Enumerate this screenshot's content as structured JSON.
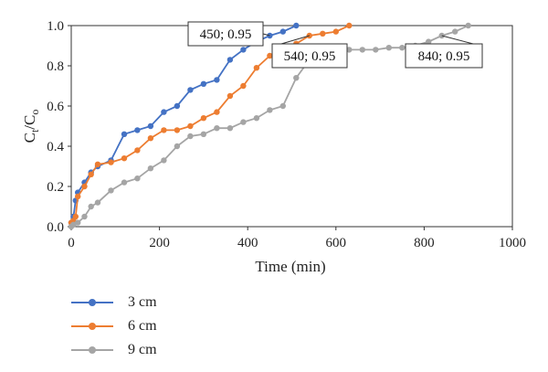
{
  "chart_data": {
    "type": "line",
    "xlabel": "Time (min)",
    "ylabel_main": "C",
    "ylabel_sub1": "t",
    "ylabel_mid": "/C",
    "ylabel_sub2": "o",
    "xlim": [
      0,
      1000
    ],
    "ylim": [
      0,
      1.0
    ],
    "x_ticks": [
      "0",
      "200",
      "400",
      "600",
      "800",
      "1000"
    ],
    "y_ticks": [
      "0.0",
      "0.2",
      "0.4",
      "0.6",
      "0.8",
      "1.0"
    ],
    "grid": false,
    "legend_position": "bottom-left",
    "series": [
      {
        "name": "3 cm",
        "color": "#4472C4",
        "points": [
          [
            0,
            0.02
          ],
          [
            5,
            0.05
          ],
          [
            10,
            0.13
          ],
          [
            15,
            0.17
          ],
          [
            30,
            0.22
          ],
          [
            45,
            0.27
          ],
          [
            60,
            0.3
          ],
          [
            90,
            0.33
          ],
          [
            120,
            0.46
          ],
          [
            150,
            0.48
          ],
          [
            180,
            0.5
          ],
          [
            210,
            0.57
          ],
          [
            240,
            0.6
          ],
          [
            270,
            0.68
          ],
          [
            300,
            0.71
          ],
          [
            330,
            0.73
          ],
          [
            360,
            0.83
          ],
          [
            390,
            0.88
          ],
          [
            420,
            0.92
          ],
          [
            450,
            0.95
          ],
          [
            480,
            0.97
          ],
          [
            510,
            1.0
          ]
        ]
      },
      {
        "name": "6 cm",
        "color": "#ED7D31",
        "points": [
          [
            0,
            0.02
          ],
          [
            5,
            0.03
          ],
          [
            10,
            0.05
          ],
          [
            15,
            0.15
          ],
          [
            30,
            0.2
          ],
          [
            45,
            0.26
          ],
          [
            60,
            0.31
          ],
          [
            90,
            0.32
          ],
          [
            120,
            0.34
          ],
          [
            150,
            0.38
          ],
          [
            180,
            0.44
          ],
          [
            210,
            0.48
          ],
          [
            240,
            0.48
          ],
          [
            270,
            0.5
          ],
          [
            300,
            0.54
          ],
          [
            330,
            0.57
          ],
          [
            360,
            0.65
          ],
          [
            390,
            0.7
          ],
          [
            420,
            0.79
          ],
          [
            450,
            0.85
          ],
          [
            480,
            0.87
          ],
          [
            510,
            0.91
          ],
          [
            540,
            0.95
          ],
          [
            570,
            0.96
          ],
          [
            600,
            0.97
          ],
          [
            630,
            1.0
          ]
        ]
      },
      {
        "name": "9 cm",
        "color": "#A5A5A5",
        "points": [
          [
            0,
            0.0
          ],
          [
            5,
            0.01
          ],
          [
            15,
            0.02
          ],
          [
            30,
            0.05
          ],
          [
            45,
            0.1
          ],
          [
            60,
            0.12
          ],
          [
            90,
            0.18
          ],
          [
            120,
            0.22
          ],
          [
            150,
            0.24
          ],
          [
            180,
            0.29
          ],
          [
            210,
            0.33
          ],
          [
            240,
            0.4
          ],
          [
            270,
            0.45
          ],
          [
            300,
            0.46
          ],
          [
            330,
            0.49
          ],
          [
            360,
            0.49
          ],
          [
            390,
            0.52
          ],
          [
            420,
            0.54
          ],
          [
            450,
            0.58
          ],
          [
            480,
            0.6
          ],
          [
            510,
            0.74
          ],
          [
            540,
            0.83
          ],
          [
            570,
            0.86
          ],
          [
            600,
            0.87
          ],
          [
            630,
            0.88
          ],
          [
            660,
            0.88
          ],
          [
            690,
            0.88
          ],
          [
            720,
            0.89
          ],
          [
            750,
            0.89
          ],
          [
            780,
            0.9
          ],
          [
            810,
            0.92
          ],
          [
            840,
            0.95
          ],
          [
            870,
            0.97
          ],
          [
            900,
            1.0
          ]
        ]
      }
    ],
    "annotations": [
      {
        "text": "450; 0.95",
        "series": 0,
        "x": 450,
        "y": 0.95
      },
      {
        "text": "540; 0.95",
        "series": 1,
        "x": 540,
        "y": 0.95
      },
      {
        "text": "840; 0.95",
        "series": 2,
        "x": 840,
        "y": 0.95
      }
    ]
  }
}
